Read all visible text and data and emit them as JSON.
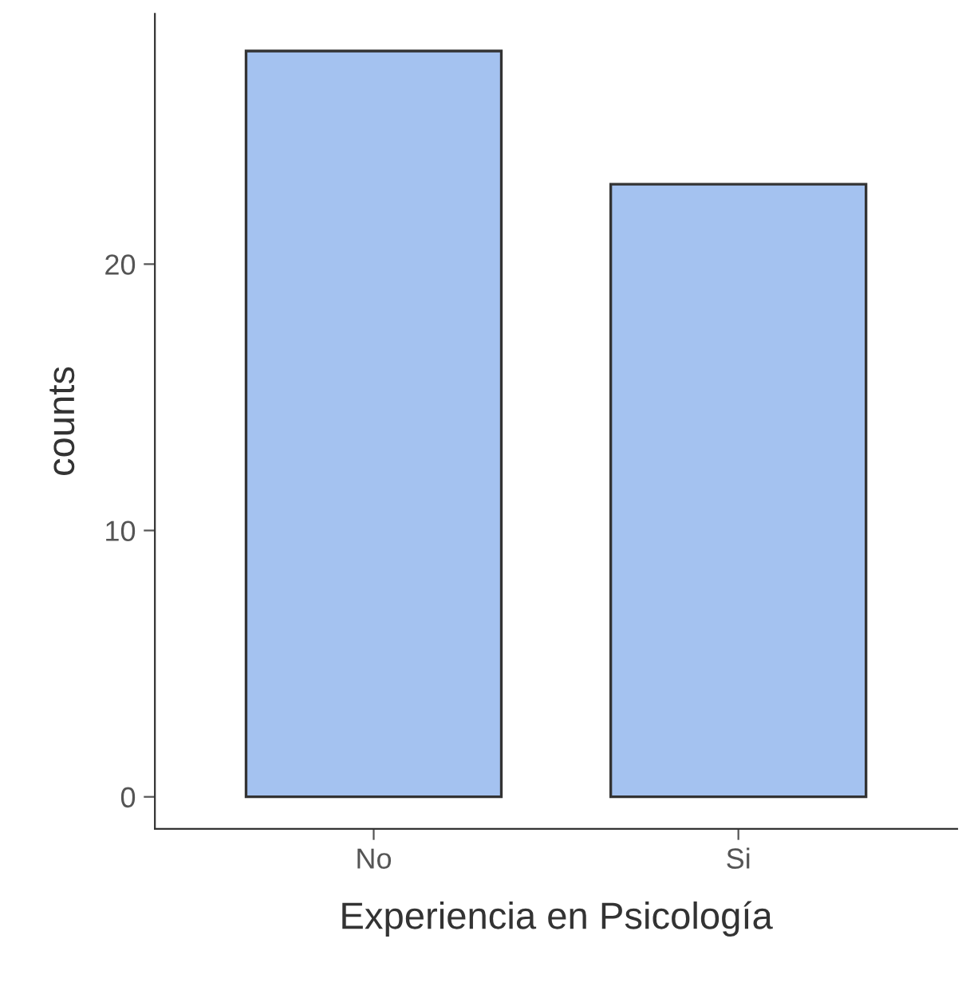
{
  "chart_data": {
    "type": "bar",
    "xlabel": "Experiencia en Psicología",
    "ylabel": "counts",
    "categories": [
      "No",
      "Si"
    ],
    "values": [
      28,
      23
    ],
    "color": "#a4c2f0",
    "ylim": [
      -1.2,
      29.4
    ],
    "yticks": [
      0,
      10,
      20
    ],
    "grid": false,
    "legend": false
  }
}
